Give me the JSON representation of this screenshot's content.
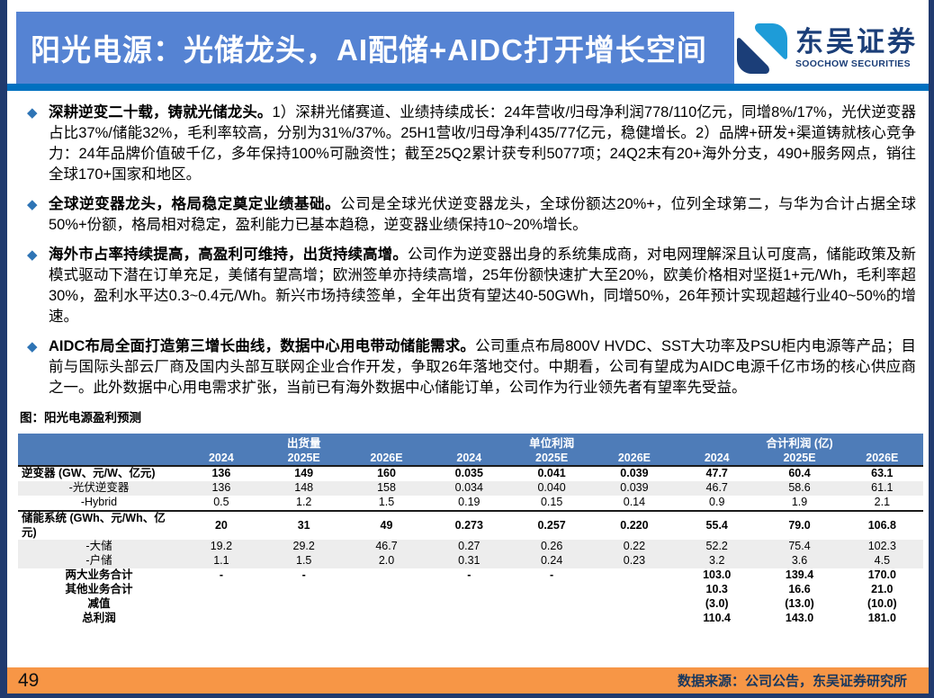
{
  "header": {
    "title": "阳光电源：光储龙头，AI配储+AIDC打开增长空间",
    "logo_cn": "东吴证券",
    "logo_en": "SOOCHOW SECURITIES"
  },
  "icons": {
    "bullet_diamond": "◆"
  },
  "bullets": [
    {
      "bold": "深耕逆变二十载，铸就光储龙头。",
      "text": "1）深耕光储赛道、业绩持续成长：24年营收/归母净利润778/110亿元，同增8%/17%，光伏逆变器占比37%/储能32%，毛利率较高，分别为31%/37%。25H1营收/归母净利435/77亿元，稳健增长。2）品牌+研发+渠道铸就核心竞争力：24年品牌价值破千亿，多年保持100%可融资性；截至25Q2累计获专利5077项；24Q2末有20+海外分支，490+服务网点，销往全球170+国家和地区。"
    },
    {
      "bold": "全球逆变器龙头，格局稳定奠定业绩基础。",
      "text": "公司是全球光伏逆变器龙头，全球份额达20%+，位列全球第二，与华为合计占据全球50%+份额，格局相对稳定，盈利能力已基本趋稳，逆变器业绩保持10~20%增长。"
    },
    {
      "bold": "海外市占率持续提高，高盈利可维持，出货持续高增。",
      "text": "公司作为逆变器出身的系统集成商，对电网理解深且认可度高，储能政策及新模式驱动下潜在订单充足，美储有望高增；欧洲签单亦持续高增，25年份额快速扩大至20%，欧美价格相对坚挺1+元/Wh，毛利率超30%，盈利水平达0.3~0.4元/Wh。新兴市场持续签单，全年出货有望达40-50GWh，同增50%，26年预计实现超越行业40~50%的增速。"
    },
    {
      "bold": "AIDC布局全面打造第三增长曲线，数据中心用电带动储能需求。",
      "text": "公司重点布局800V HVDC、SST大功率及PSU柜内电源等产品；目前与国际头部云厂商及国内头部互联网企业合作开发，争取26年落地交付。中期看，公司有望成为AIDC电源千亿市场的核心供应商之一。此外数据中心用电需求扩张，当前已有海外数据中心储能订单，公司作为行业领先者有望率先受益。"
    }
  ],
  "figure": {
    "caption": "图：阳光电源盈利预测"
  },
  "table": {
    "groups": [
      {
        "label": "出货量",
        "span": 3
      },
      {
        "label": "单位利润",
        "span": 3
      },
      {
        "label": "合计利润 (亿)",
        "span": 3
      }
    ],
    "years": [
      "2024",
      "2025E",
      "2026E",
      "2024",
      "2025E",
      "2026E",
      "2024",
      "2025E",
      "2026E"
    ],
    "rows": [
      {
        "label": "逆变器 (GW、元/W、亿元)",
        "style": "category",
        "values": [
          "136",
          "149",
          "160",
          "0.035",
          "0.041",
          "0.039",
          "47.7",
          "60.4",
          "63.1"
        ]
      },
      {
        "label": "-光伏逆变器",
        "style": "sub shaded",
        "values": [
          "136",
          "148",
          "158",
          "0.034",
          "0.040",
          "0.039",
          "46.7",
          "58.6",
          "61.1"
        ]
      },
      {
        "label": "-Hybrid",
        "style": "sub",
        "values": [
          "0.5",
          "1.2",
          "1.5",
          "0.19",
          "0.15",
          "0.14",
          "0.9",
          "1.9",
          "2.1"
        ]
      },
      {
        "label": "储能系统 (GWh、元/Wh、亿元)",
        "style": "category",
        "values": [
          "20",
          "31",
          "49",
          "0.273",
          "0.257",
          "0.220",
          "55.4",
          "79.0",
          "106.8"
        ]
      },
      {
        "label": "-大储",
        "style": "sub shaded",
        "values": [
          "19.2",
          "29.2",
          "46.7",
          "0.27",
          "0.26",
          "0.22",
          "52.2",
          "75.4",
          "102.3"
        ]
      },
      {
        "label": "-户储",
        "style": "sub shaded",
        "values": [
          "1.1",
          "1.5",
          "2.0",
          "0.31",
          "0.24",
          "0.23",
          "3.2",
          "3.6",
          "4.5"
        ]
      },
      {
        "label": "两大业务合计",
        "style": "total",
        "values": [
          "-",
          "-",
          "",
          "-",
          "-",
          "",
          "103.0",
          "139.4",
          "170.0"
        ]
      },
      {
        "label": "其他业务合计",
        "style": "total",
        "values": [
          "",
          "",
          "",
          "",
          "",
          "",
          "10.3",
          "16.6",
          "21.0"
        ]
      },
      {
        "label": "减值",
        "style": "total",
        "values": [
          "",
          "",
          "",
          "",
          "",
          "",
          "(3.0)",
          "(13.0)",
          "(10.0)"
        ]
      },
      {
        "label": "总利润",
        "style": "total",
        "values": [
          "",
          "",
          "",
          "",
          "",
          "",
          "110.4",
          "143.0",
          "181.0"
        ]
      }
    ]
  },
  "footer": {
    "page_number": "49",
    "source": "数据来源：公司公告，东吴证券研究所"
  },
  "colors": {
    "title_box": "#5583D3",
    "header_rule": "#0070C0",
    "table_header": "#4E7CB8",
    "table_shaded_row": "#EDEDED",
    "footer_bar": "#F79646",
    "page_border": "#203A6E",
    "bullet_diamond": "#2E74B5",
    "logo_navy": "#1B3E78",
    "logo_blue": "#1E9CD8",
    "source_text": "#17375E"
  }
}
